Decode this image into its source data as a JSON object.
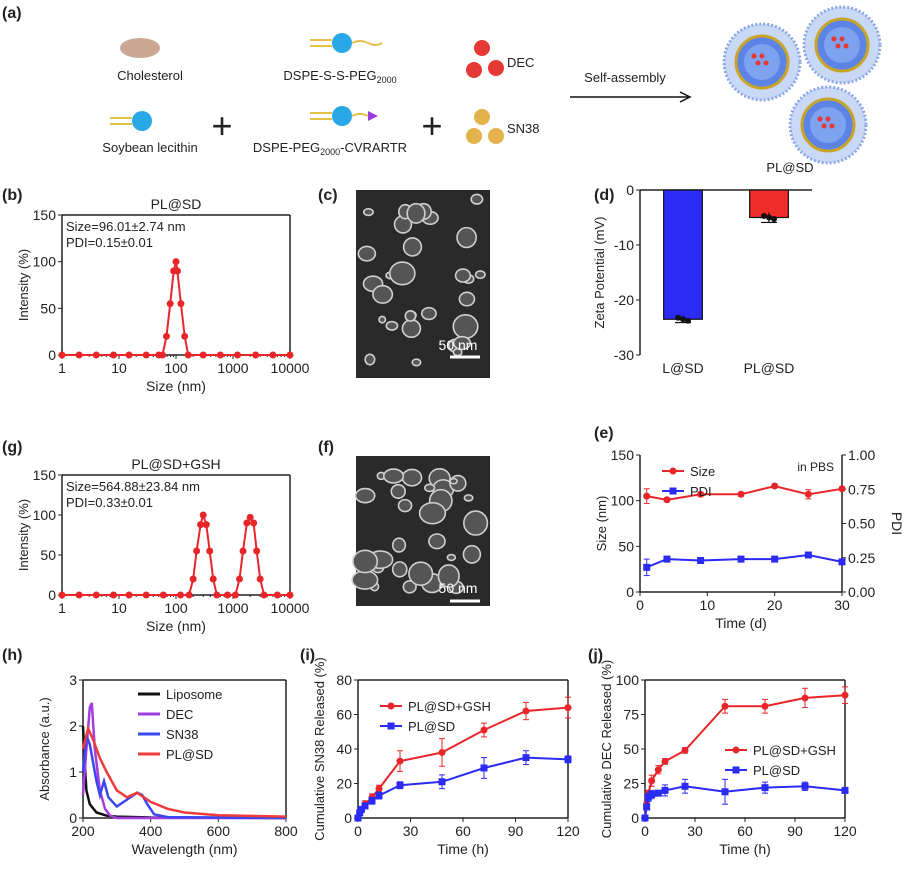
{
  "panel_labels": {
    "a": "(a)",
    "b": "(b)",
    "c": "(c)",
    "d": "(d)",
    "g": "(g)",
    "f": "(f)",
    "e": "(e)",
    "h": "(h)",
    "i": "(i)",
    "j": "(j)"
  },
  "schematic": {
    "cholesterol": "Cholesterol",
    "soybean": "Soybean lecithin",
    "dspe_ss_peg": "DSPE-S-S-PEG",
    "dspe_ss_peg_sub": "2000",
    "dspe_peg": "DSPE-PEG",
    "dspe_peg_sub": "2000",
    "dspe_peg_suffix": "-CVRARTR",
    "dec": "DEC",
    "sn38": "SN38",
    "arrow_label": "Self-assembly",
    "product": "PL@SD",
    "plus": "+",
    "colors": {
      "dec": "#e53935",
      "sn38": "#e3b24a",
      "lipid_head": "#29a8e8",
      "liposome_shell": "#7aa7e8"
    }
  },
  "tem": {
    "c_scale": "50 nm",
    "f_scale": "50 nm"
  },
  "chart_data": [
    {
      "id": "b",
      "type": "scatter-line",
      "title": "PL@SD",
      "annotations": [
        "Size=96.01±2.74 nm",
        "PDI=0.15±0.01"
      ],
      "xlabel": "Size (nm)",
      "ylabel": "Intensity (%)",
      "xscale": "log",
      "xlim": [
        1,
        10000
      ],
      "ylim": [
        0,
        150
      ],
      "xticks": [
        "1",
        "10",
        "100",
        "1000",
        "10000"
      ],
      "yticks": [
        "0",
        "50",
        "100",
        "150"
      ],
      "series": [
        {
          "color": "#e8262a",
          "points": [
            [
              1,
              0
            ],
            [
              2,
              0
            ],
            [
              4,
              0
            ],
            [
              8,
              0
            ],
            [
              15,
              0
            ],
            [
              30,
              0
            ],
            [
              50,
              0
            ],
            [
              58,
              0
            ],
            [
              68,
              20
            ],
            [
              79,
              55
            ],
            [
              91,
              90
            ],
            [
              100,
              100
            ],
            [
              106,
              90
            ],
            [
              122,
              55
            ],
            [
              142,
              20
            ],
            [
              164,
              0
            ],
            [
              300,
              0
            ],
            [
              600,
              0
            ],
            [
              1200,
              0
            ],
            [
              2500,
              0
            ],
            [
              5000,
              0
            ],
            [
              10000,
              0
            ]
          ]
        }
      ]
    },
    {
      "id": "g",
      "type": "scatter-line",
      "title": "PL@SD+GSH",
      "annotations": [
        "Size=564.88±23.84 nm",
        "PDI=0.33±0.01"
      ],
      "xlabel": "Size (nm)",
      "ylabel": "Intensity (%)",
      "xscale": "log",
      "xlim": [
        1,
        10000
      ],
      "ylim": [
        0,
        150
      ],
      "xticks": [
        "1",
        "10",
        "100",
        "1000",
        "10000"
      ],
      "yticks": [
        "0",
        "50",
        "100",
        "150"
      ],
      "series": [
        {
          "color": "#e8262a",
          "points": [
            [
              1,
              0
            ],
            [
              2,
              0
            ],
            [
              4,
              0
            ],
            [
              8,
              0
            ],
            [
              15,
              0
            ],
            [
              30,
              0
            ],
            [
              60,
              0
            ],
            [
              120,
              0
            ],
            [
              170,
              0
            ],
            [
              200,
              20
            ],
            [
              230,
              55
            ],
            [
              270,
              88
            ],
            [
              300,
              100
            ],
            [
              340,
              88
            ],
            [
              390,
              55
            ],
            [
              450,
              20
            ],
            [
              520,
              0
            ],
            [
              800,
              0
            ],
            [
              1100,
              0
            ],
            [
              1300,
              20
            ],
            [
              1500,
              55
            ],
            [
              1750,
              90
            ],
            [
              2000,
              97
            ],
            [
              2300,
              90
            ],
            [
              2600,
              55
            ],
            [
              3000,
              20
            ],
            [
              3500,
              0
            ],
            [
              6000,
              0
            ],
            [
              10000,
              0
            ]
          ]
        }
      ]
    },
    {
      "id": "d",
      "type": "bar",
      "ylabel": "Zeta Potential (mV)",
      "categories": [
        "L@SD",
        "PL@SD"
      ],
      "values": [
        -23.5,
        -5.0
      ],
      "errors": [
        0.6,
        0.9
      ],
      "colors": [
        "#2b2bf5",
        "#ee2b2b"
      ],
      "ylim": [
        -30,
        0
      ],
      "yticks": [
        "0",
        "-10",
        "-20",
        "-30"
      ]
    },
    {
      "id": "e",
      "type": "line",
      "xlabel": "Time (d)",
      "ylabel": "Size (nm)",
      "ylabel_right": "PDI",
      "annotation": "in PBS",
      "xlim": [
        0,
        30
      ],
      "ylim": [
        0,
        150
      ],
      "ylim_right": [
        0,
        1
      ],
      "xticks": [
        "0",
        "10",
        "20",
        "30"
      ],
      "yticks": [
        "0",
        "50",
        "100",
        "150"
      ],
      "yticks_right": [
        "0.00",
        "0.25",
        "0.50",
        "0.75",
        "1.00"
      ],
      "legend": "top-left",
      "series": [
        {
          "name": "Size",
          "color": "#e8262a",
          "axis": "left",
          "x": [
            1,
            4,
            9,
            15,
            20,
            25,
            30
          ],
          "y": [
            105,
            101,
            107,
            107,
            116,
            107,
            113
          ],
          "err": [
            8,
            2,
            2,
            2,
            2,
            5,
            2
          ]
        },
        {
          "name": "PDI",
          "color": "#2b2bf5",
          "axis": "right",
          "x": [
            1,
            4,
            9,
            15,
            20,
            25,
            30
          ],
          "y": [
            0.18,
            0.24,
            0.23,
            0.24,
            0.24,
            0.27,
            0.22
          ],
          "err": [
            0.06,
            0.02,
            0.01,
            0.02,
            0.01,
            0.02,
            0.01
          ]
        }
      ]
    },
    {
      "id": "h",
      "type": "line",
      "xlabel": "Wavelength (nm)",
      "ylabel": "Absorbance (a.u.)",
      "xlim": [
        200,
        800
      ],
      "ylim": [
        0,
        3
      ],
      "xticks": [
        "200",
        "400",
        "600",
        "800"
      ],
      "yticks": [
        "0",
        "1",
        "2",
        "3"
      ],
      "legend": "top-right",
      "series": [
        {
          "name": "Liposome",
          "color": "#111111",
          "points": [
            [
              200,
              2.0
            ],
            [
              205,
              1.2
            ],
            [
              210,
              0.6
            ],
            [
              220,
              0.3
            ],
            [
              240,
              0.12
            ],
            [
              270,
              0.05
            ],
            [
              300,
              0.03
            ],
            [
              400,
              0.01
            ],
            [
              800,
              0
            ]
          ]
        },
        {
          "name": "DEC",
          "color": "#a23de0",
          "points": [
            [
              200,
              0.5
            ],
            [
              210,
              1.5
            ],
            [
              220,
              2.4
            ],
            [
              226,
              2.5
            ],
            [
              235,
              1.5
            ],
            [
              250,
              0.6
            ],
            [
              265,
              0.2
            ],
            [
              280,
              0.05
            ],
            [
              300,
              0
            ],
            [
              800,
              0
            ]
          ]
        },
        {
          "name": "SN38",
          "color": "#3a46f0",
          "points": [
            [
              200,
              1.0
            ],
            [
              210,
              1.8
            ],
            [
              220,
              1.6
            ],
            [
              240,
              0.8
            ],
            [
              250,
              0.5
            ],
            [
              262,
              0.8
            ],
            [
              275,
              0.45
            ],
            [
              300,
              0.25
            ],
            [
              330,
              0.4
            ],
            [
              360,
              0.55
            ],
            [
              375,
              0.5
            ],
            [
              390,
              0.3
            ],
            [
              410,
              0.08
            ],
            [
              450,
              0.02
            ],
            [
              800,
              0
            ]
          ]
        },
        {
          "name": "PL@SD",
          "color": "#ee3b3b",
          "points": [
            [
              200,
              1.5
            ],
            [
              215,
              1.95
            ],
            [
              230,
              1.7
            ],
            [
              250,
              1.3
            ],
            [
              270,
              1.0
            ],
            [
              300,
              0.6
            ],
            [
              330,
              0.45
            ],
            [
              360,
              0.55
            ],
            [
              380,
              0.45
            ],
            [
              400,
              0.35
            ],
            [
              450,
              0.2
            ],
            [
              500,
              0.12
            ],
            [
              600,
              0.06
            ],
            [
              800,
              0.03
            ]
          ]
        }
      ]
    },
    {
      "id": "i",
      "type": "line",
      "xlabel": "Time (h)",
      "ylabel": "Cumulative SN38 Released (%)",
      "xlim": [
        0,
        120
      ],
      "ylim": [
        0,
        80
      ],
      "xticks": [
        "0",
        "30",
        "60",
        "90",
        "120"
      ],
      "yticks": [
        "0",
        "20",
        "40",
        "60",
        "80"
      ],
      "legend": "top-left",
      "series": [
        {
          "name": "PL@SD+GSH",
          "color": "#e8262a",
          "x": [
            0,
            1,
            2,
            4,
            8,
            12,
            24,
            48,
            72,
            96,
            120
          ],
          "y": [
            0,
            3,
            5,
            8,
            12,
            17,
            33,
            38,
            51,
            62,
            64
          ],
          "err": [
            0,
            1,
            1,
            2,
            2,
            2,
            6,
            8,
            4,
            5,
            6
          ]
        },
        {
          "name": "PL@SD",
          "color": "#2b2bf5",
          "x": [
            0,
            1,
            2,
            4,
            8,
            12,
            24,
            48,
            72,
            96,
            120
          ],
          "y": [
            0,
            3,
            5,
            7,
            10,
            13,
            19,
            21,
            29,
            35,
            34
          ],
          "err": [
            0,
            1,
            1,
            1,
            2,
            2,
            2,
            4,
            6,
            4,
            2
          ]
        }
      ]
    },
    {
      "id": "j",
      "type": "line",
      "xlabel": "Time (h)",
      "ylabel": "Cumulative DEC Released (%)",
      "xlim": [
        0,
        120
      ],
      "ylim": [
        0,
        100
      ],
      "xticks": [
        "0",
        "30",
        "60",
        "90",
        "120"
      ],
      "yticks": [
        "0",
        "25",
        "50",
        "75",
        "100"
      ],
      "legend": "center-right",
      "series": [
        {
          "name": "PL@SD+GSH",
          "color": "#e8262a",
          "x": [
            0,
            1,
            2,
            4,
            8,
            12,
            24,
            48,
            72,
            96,
            120
          ],
          "y": [
            0,
            10,
            18,
            27,
            35,
            41,
            49,
            81,
            81,
            87,
            89
          ],
          "err": [
            0,
            2,
            2,
            4,
            3,
            2,
            2,
            5,
            5,
            7,
            6
          ]
        },
        {
          "name": "PL@SD",
          "color": "#2b2bf5",
          "x": [
            0,
            1,
            2,
            4,
            8,
            12,
            24,
            48,
            72,
            96,
            120
          ],
          "y": [
            0,
            8,
            15,
            17,
            18,
            20,
            23,
            19,
            22,
            23,
            20
          ],
          "err": [
            0,
            2,
            3,
            3,
            2,
            4,
            5,
            9,
            4,
            3,
            2
          ]
        }
      ]
    }
  ]
}
